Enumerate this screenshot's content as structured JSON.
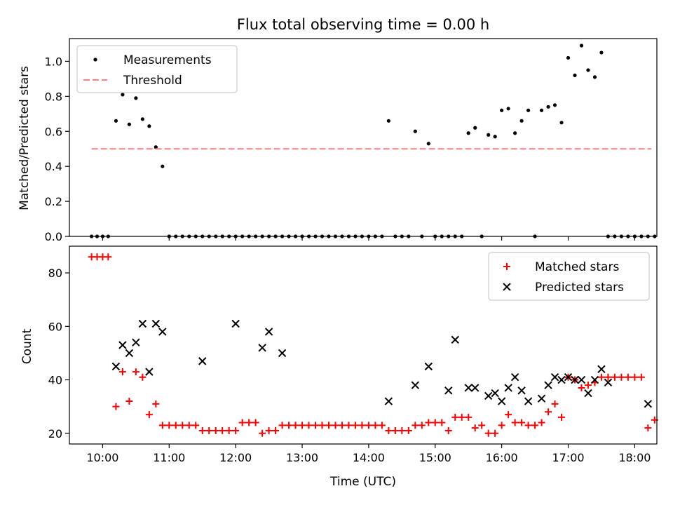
{
  "chart_data": [
    {
      "type": "scatter",
      "title": "Flux total observing time = 0.00 h",
      "xlabel": "",
      "ylabel": "Matched/Predicted stars",
      "xlim": [
        "09:30",
        "18:20"
      ],
      "ylim": [
        0,
        1.13
      ],
      "yticks": [
        0.0,
        0.2,
        0.4,
        0.6,
        0.8,
        1.0
      ],
      "ytick_labels": [
        "0.0",
        "0.2",
        "0.4",
        "0.6",
        "0.8",
        "1.0"
      ],
      "legend_position": "top-left",
      "grid": false,
      "series": [
        {
          "name": "Measurements",
          "color": "#000000",
          "marker": "dot",
          "points": [
            [
              "09:50",
              0
            ],
            [
              "09:55",
              0
            ],
            [
              "10:00",
              0
            ],
            [
              "10:05",
              0
            ],
            [
              "10:12",
              0.66
            ],
            [
              "10:18",
              0.81
            ],
            [
              "10:24",
              0.64
            ],
            [
              "10:30",
              0.79
            ],
            [
              "10:36",
              0.67
            ],
            [
              "10:42",
              0.63
            ],
            [
              "10:48",
              0.51
            ],
            [
              "10:54",
              0.4
            ],
            [
              "11:00",
              0
            ],
            [
              "11:06",
              0
            ],
            [
              "11:12",
              0
            ],
            [
              "11:18",
              0
            ],
            [
              "11:24",
              0
            ],
            [
              "11:30",
              0
            ],
            [
              "11:36",
              0
            ],
            [
              "11:42",
              0
            ],
            [
              "11:48",
              0
            ],
            [
              "11:54",
              0
            ],
            [
              "12:00",
              0
            ],
            [
              "12:06",
              0
            ],
            [
              "12:12",
              0
            ],
            [
              "12:18",
              0
            ],
            [
              "12:24",
              0
            ],
            [
              "12:30",
              0
            ],
            [
              "12:36",
              0
            ],
            [
              "12:42",
              0
            ],
            [
              "12:48",
              0
            ],
            [
              "12:54",
              0
            ],
            [
              "13:00",
              0
            ],
            [
              "13:06",
              0
            ],
            [
              "13:12",
              0
            ],
            [
              "13:18",
              0
            ],
            [
              "13:24",
              0
            ],
            [
              "13:30",
              0
            ],
            [
              "13:36",
              0
            ],
            [
              "13:42",
              0
            ],
            [
              "13:48",
              0
            ],
            [
              "13:54",
              0
            ],
            [
              "14:00",
              0
            ],
            [
              "14:06",
              0
            ],
            [
              "14:12",
              0
            ],
            [
              "14:18",
              0.66
            ],
            [
              "14:24",
              0
            ],
            [
              "14:30",
              0
            ],
            [
              "14:36",
              0
            ],
            [
              "14:42",
              0.6
            ],
            [
              "14:48",
              0
            ],
            [
              "14:54",
              0.53
            ],
            [
              "15:00",
              0
            ],
            [
              "15:06",
              0
            ],
            [
              "15:12",
              0
            ],
            [
              "15:18",
              0
            ],
            [
              "15:24",
              0
            ],
            [
              "15:30",
              0.59
            ],
            [
              "15:36",
              0.62
            ],
            [
              "15:42",
              0
            ],
            [
              "15:48",
              0.58
            ],
            [
              "15:54",
              0.57
            ],
            [
              "16:00",
              0.72
            ],
            [
              "16:06",
              0.73
            ],
            [
              "16:12",
              0.59
            ],
            [
              "16:18",
              0.66
            ],
            [
              "16:24",
              0.72
            ],
            [
              "16:30",
              0
            ],
            [
              "16:36",
              0.72
            ],
            [
              "16:42",
              0.74
            ],
            [
              "16:48",
              0.75
            ],
            [
              "16:54",
              0.65
            ],
            [
              "17:00",
              1.02
            ],
            [
              "17:06",
              0.92
            ],
            [
              "17:12",
              1.09
            ],
            [
              "17:18",
              0.95
            ],
            [
              "17:24",
              0.91
            ],
            [
              "17:30",
              1.05
            ],
            [
              "17:36",
              0
            ],
            [
              "17:42",
              0
            ],
            [
              "17:48",
              0
            ],
            [
              "17:54",
              0
            ],
            [
              "18:00",
              0
            ],
            [
              "18:06",
              0
            ],
            [
              "18:12",
              0
            ],
            [
              "18:18",
              0
            ]
          ]
        },
        {
          "name": "Threshold",
          "color": "#ff7f7f",
          "style": "dashed",
          "x": [
            "09:50",
            "18:15"
          ],
          "y": [
            0.5,
            0.5
          ]
        }
      ]
    },
    {
      "type": "scatter",
      "title": "",
      "xlabel": "Time (UTC)",
      "ylabel": "Count",
      "xlim": [
        "09:30",
        "18:20"
      ],
      "ylim": [
        16,
        90
      ],
      "xticks": [
        "10:00",
        "11:00",
        "12:00",
        "13:00",
        "14:00",
        "15:00",
        "16:00",
        "17:00",
        "18:00"
      ],
      "yticks": [
        20,
        40,
        60,
        80
      ],
      "ytick_labels": [
        "20",
        "40",
        "60",
        "80"
      ],
      "legend_position": "top-right",
      "grid": false,
      "series": [
        {
          "name": "Matched stars",
          "color": "#ff0000",
          "marker": "plus",
          "points": [
            [
              "09:50",
              86
            ],
            [
              "09:55",
              86
            ],
            [
              "10:00",
              86
            ],
            [
              "10:05",
              86
            ],
            [
              "10:12",
              30
            ],
            [
              "10:18",
              43
            ],
            [
              "10:24",
              32
            ],
            [
              "10:30",
              43
            ],
            [
              "10:36",
              41
            ],
            [
              "10:42",
              27
            ],
            [
              "10:48",
              31
            ],
            [
              "10:54",
              23
            ],
            [
              "11:00",
              23
            ],
            [
              "11:06",
              23
            ],
            [
              "11:12",
              23
            ],
            [
              "11:18",
              23
            ],
            [
              "11:24",
              23
            ],
            [
              "11:30",
              21
            ],
            [
              "11:36",
              21
            ],
            [
              "11:42",
              21
            ],
            [
              "11:48",
              21
            ],
            [
              "11:54",
              21
            ],
            [
              "12:00",
              21
            ],
            [
              "12:06",
              24
            ],
            [
              "12:12",
              24
            ],
            [
              "12:18",
              24
            ],
            [
              "12:24",
              20
            ],
            [
              "12:30",
              21
            ],
            [
              "12:36",
              21
            ],
            [
              "12:42",
              23
            ],
            [
              "12:48",
              23
            ],
            [
              "12:54",
              23
            ],
            [
              "13:00",
              23
            ],
            [
              "13:06",
              23
            ],
            [
              "13:12",
              23
            ],
            [
              "13:18",
              23
            ],
            [
              "13:24",
              23
            ],
            [
              "13:30",
              23
            ],
            [
              "13:36",
              23
            ],
            [
              "13:42",
              23
            ],
            [
              "13:48",
              23
            ],
            [
              "13:54",
              23
            ],
            [
              "14:00",
              23
            ],
            [
              "14:06",
              23
            ],
            [
              "14:12",
              23
            ],
            [
              "14:18",
              21
            ],
            [
              "14:24",
              21
            ],
            [
              "14:30",
              21
            ],
            [
              "14:36",
              21
            ],
            [
              "14:42",
              23
            ],
            [
              "14:48",
              23
            ],
            [
              "14:54",
              24
            ],
            [
              "15:00",
              24
            ],
            [
              "15:06",
              24
            ],
            [
              "15:12",
              21
            ],
            [
              "15:18",
              26
            ],
            [
              "15:24",
              26
            ],
            [
              "15:30",
              26
            ],
            [
              "15:36",
              22
            ],
            [
              "15:42",
              23
            ],
            [
              "15:48",
              20
            ],
            [
              "15:54",
              20
            ],
            [
              "16:00",
              23
            ],
            [
              "16:06",
              27
            ],
            [
              "16:12",
              24
            ],
            [
              "16:18",
              24
            ],
            [
              "16:24",
              23
            ],
            [
              "16:30",
              23
            ],
            [
              "16:36",
              24
            ],
            [
              "16:42",
              28
            ],
            [
              "16:48",
              31
            ],
            [
              "16:54",
              26
            ],
            [
              "17:00",
              41
            ],
            [
              "17:06",
              40
            ],
            [
              "17:12",
              37
            ],
            [
              "17:18",
              38
            ],
            [
              "17:24",
              39
            ],
            [
              "17:30",
              41
            ],
            [
              "17:36",
              41
            ],
            [
              "17:42",
              41
            ],
            [
              "17:48",
              41
            ],
            [
              "17:54",
              41
            ],
            [
              "18:00",
              41
            ],
            [
              "18:06",
              41
            ],
            [
              "18:12",
              22
            ],
            [
              "18:18",
              25
            ]
          ]
        },
        {
          "name": "Predicted stars",
          "color": "#000000",
          "marker": "x",
          "points": [
            [
              "10:12",
              45
            ],
            [
              "10:18",
              53
            ],
            [
              "10:24",
              50
            ],
            [
              "10:30",
              54
            ],
            [
              "10:36",
              61
            ],
            [
              "10:42",
              43
            ],
            [
              "10:48",
              61
            ],
            [
              "10:54",
              58
            ],
            [
              "11:30",
              47
            ],
            [
              "12:00",
              61
            ],
            [
              "12:24",
              52
            ],
            [
              "12:30",
              58
            ],
            [
              "12:42",
              50
            ],
            [
              "14:18",
              32
            ],
            [
              "14:42",
              38
            ],
            [
              "14:54",
              45
            ],
            [
              "15:12",
              36
            ],
            [
              "15:18",
              55
            ],
            [
              "15:30",
              37
            ],
            [
              "15:36",
              37
            ],
            [
              "15:48",
              34
            ],
            [
              "15:54",
              35
            ],
            [
              "16:00",
              32
            ],
            [
              "16:06",
              37
            ],
            [
              "16:12",
              41
            ],
            [
              "16:18",
              36
            ],
            [
              "16:24",
              32
            ],
            [
              "16:36",
              33
            ],
            [
              "16:42",
              38
            ],
            [
              "16:48",
              41
            ],
            [
              "16:54",
              40
            ],
            [
              "17:00",
              41
            ],
            [
              "17:06",
              40
            ],
            [
              "17:12",
              40
            ],
            [
              "17:18",
              35
            ],
            [
              "17:24",
              40
            ],
            [
              "17:30",
              44
            ],
            [
              "17:36",
              39
            ],
            [
              "18:12",
              31
            ]
          ]
        }
      ]
    }
  ],
  "legend": {
    "top": [
      "Measurements",
      "Threshold"
    ],
    "bottom": [
      "Matched stars",
      "Predicted stars"
    ]
  }
}
